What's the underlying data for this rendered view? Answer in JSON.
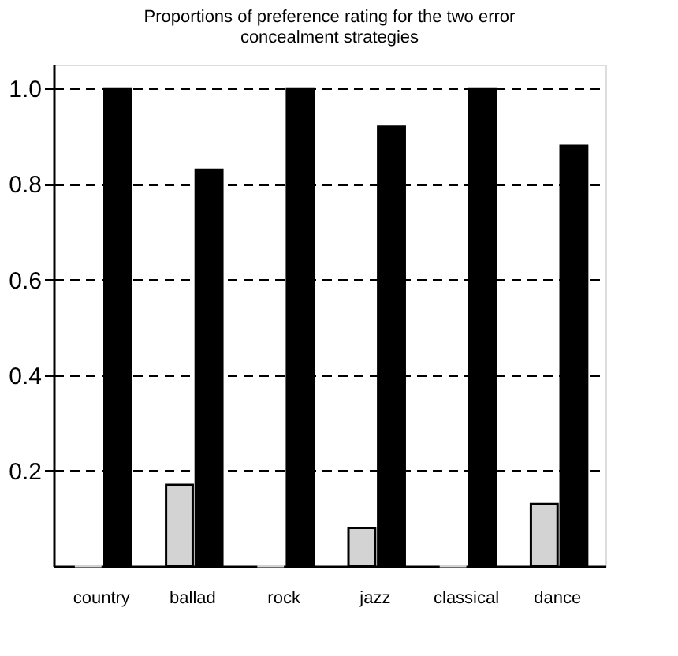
{
  "chart_data": {
    "type": "bar",
    "title": [
      "Proportions of preference rating for the two error",
      "concealment strategies"
    ],
    "categories": [
      "country",
      "ballad",
      "rock",
      "jazz",
      "classical",
      "dance"
    ],
    "series": [
      {
        "color": "#d3d3d3",
        "values": [
          0,
          0.17,
          0,
          0.08,
          0,
          0.13
        ]
      },
      {
        "color": "#000000",
        "values": [
          1.0,
          0.83,
          1.0,
          0.92,
          1.0,
          0.88
        ]
      }
    ],
    "ylim": [
      0,
      1.05
    ],
    "yticks": [
      {
        "value": 0.2,
        "label": "0.2"
      },
      {
        "value": 0.4,
        "label": "0.4"
      },
      {
        "value": 0.6,
        "label": "0.6"
      },
      {
        "value": 0.8,
        "label": "0.8"
      },
      {
        "value": 1,
        "label": "1.0"
      }
    ],
    "grid": "y",
    "legend": false
  }
}
